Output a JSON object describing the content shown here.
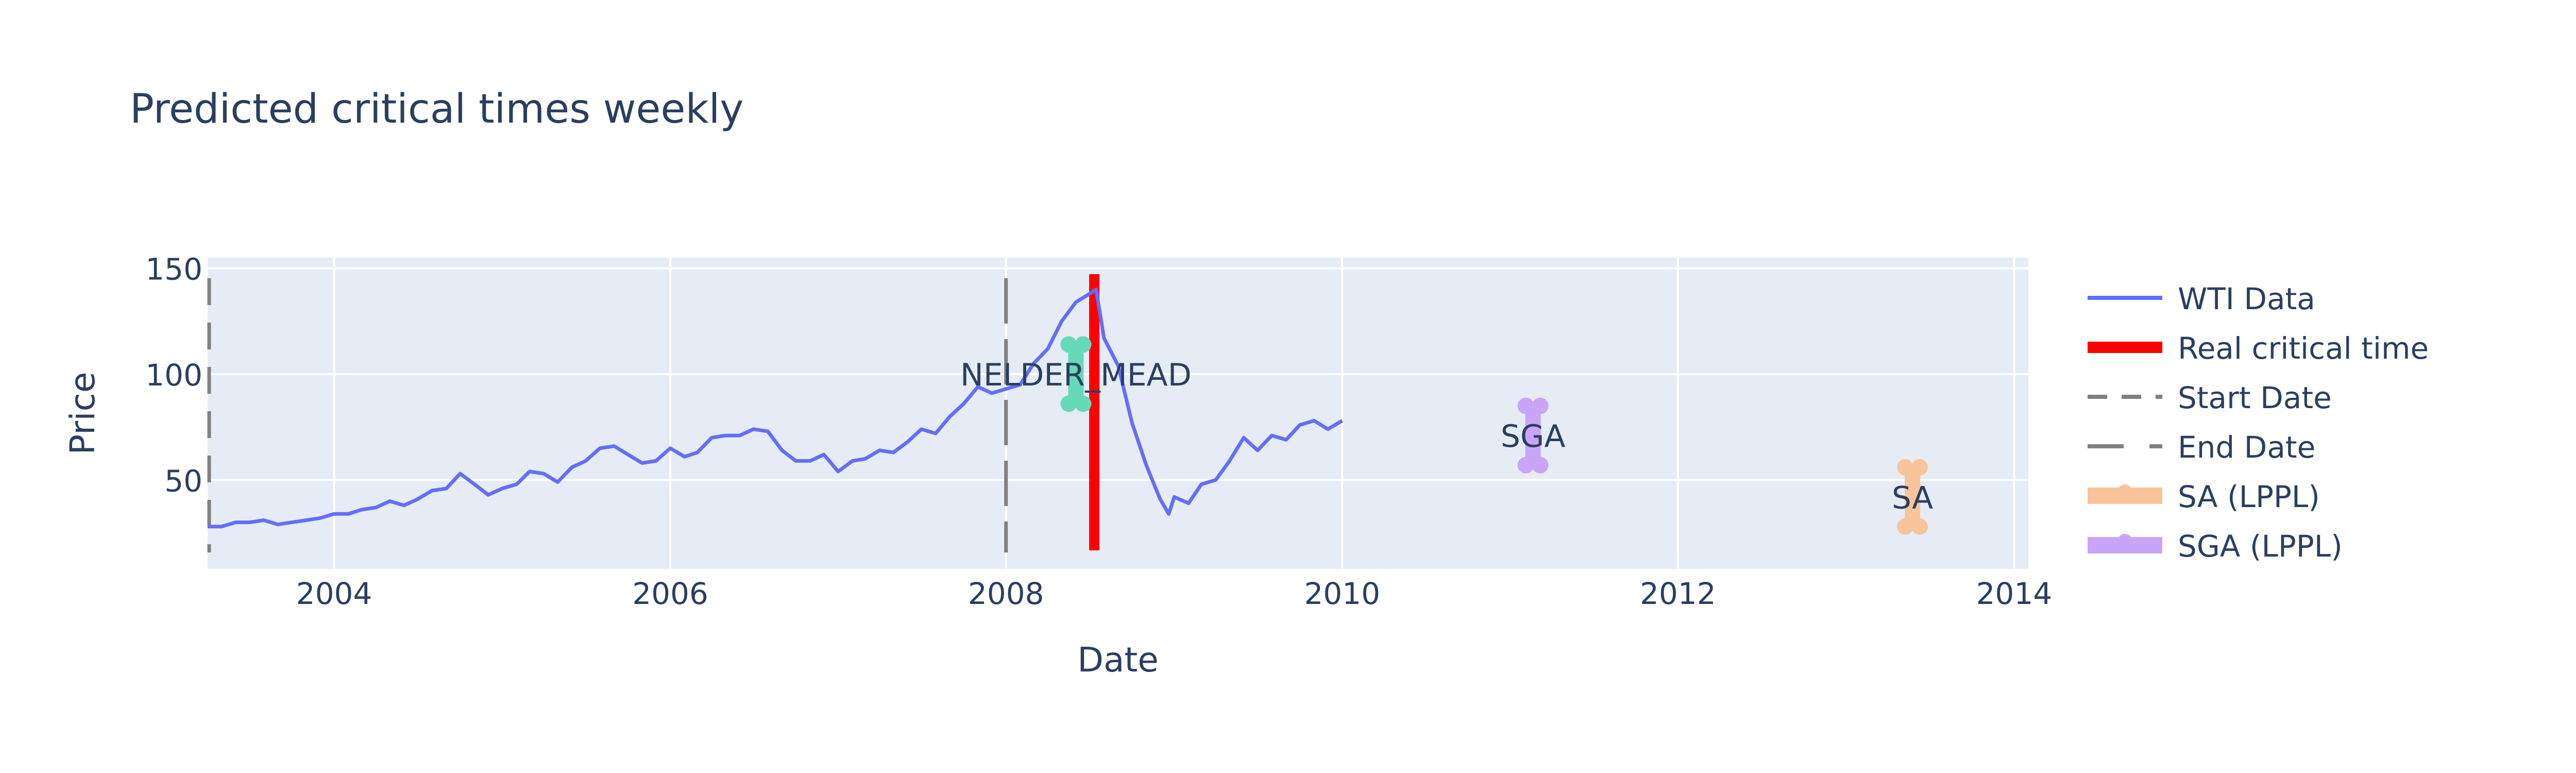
{
  "chart_data": {
    "type": "line",
    "title": "Predicted critical times weekly",
    "xlabel": "Date",
    "ylabel": "Price",
    "xlim": [
      "2003-04-01",
      "2014-02-01"
    ],
    "ylim": [
      8,
      155
    ],
    "x_ticks": [
      "2004",
      "2006",
      "2008",
      "2010",
      "2012",
      "2014"
    ],
    "y_ticks": [
      50,
      100,
      150
    ],
    "grid": true,
    "legend_position": "right",
    "colors": {
      "plot_bg": "#E5ECF6",
      "grid": "#ffffff",
      "text": "#2a3f5f",
      "wti": "#636EFA",
      "real": "#FF0000",
      "bounds": "#808080",
      "nelder_mead": "#66D9B8",
      "sa": "#F9C49A",
      "sga": "#C9A5F7"
    },
    "legend": [
      {
        "key": "wti",
        "label": "WTI Data",
        "style": "line"
      },
      {
        "key": "real",
        "label": "Real critical time",
        "style": "thick"
      },
      {
        "key": "start",
        "label": "Start Date",
        "style": "dash"
      },
      {
        "key": "end",
        "label": "End Date",
        "style": "longdash"
      },
      {
        "key": "sa",
        "label": "SA (LPPL)",
        "style": "band"
      },
      {
        "key": "sga",
        "label": "SGA (LPPL)",
        "style": "band"
      }
    ],
    "series": [
      {
        "key": "wti",
        "name": "WTI Data",
        "points": [
          [
            "2003-04-01",
            28
          ],
          [
            "2003-05-01",
            28
          ],
          [
            "2003-06-01",
            30
          ],
          [
            "2003-07-01",
            30
          ],
          [
            "2003-08-01",
            31
          ],
          [
            "2003-09-01",
            29
          ],
          [
            "2003-10-01",
            30
          ],
          [
            "2003-11-01",
            31
          ],
          [
            "2003-12-01",
            32
          ],
          [
            "2004-01-01",
            34
          ],
          [
            "2004-02-01",
            34
          ],
          [
            "2004-03-01",
            36
          ],
          [
            "2004-04-01",
            37
          ],
          [
            "2004-05-01",
            40
          ],
          [
            "2004-06-01",
            38
          ],
          [
            "2004-07-01",
            41
          ],
          [
            "2004-08-01",
            45
          ],
          [
            "2004-09-01",
            46
          ],
          [
            "2004-10-01",
            53
          ],
          [
            "2004-11-01",
            48
          ],
          [
            "2004-12-01",
            43
          ],
          [
            "2005-01-01",
            46
          ],
          [
            "2005-02-01",
            48
          ],
          [
            "2005-03-01",
            54
          ],
          [
            "2005-04-01",
            53
          ],
          [
            "2005-05-01",
            49
          ],
          [
            "2005-06-01",
            56
          ],
          [
            "2005-07-01",
            59
          ],
          [
            "2005-08-01",
            65
          ],
          [
            "2005-09-01",
            66
          ],
          [
            "2005-10-01",
            62
          ],
          [
            "2005-11-01",
            58
          ],
          [
            "2005-12-01",
            59
          ],
          [
            "2006-01-01",
            65
          ],
          [
            "2006-02-01",
            61
          ],
          [
            "2006-03-01",
            63
          ],
          [
            "2006-04-01",
            70
          ],
          [
            "2006-05-01",
            71
          ],
          [
            "2006-06-01",
            71
          ],
          [
            "2006-07-01",
            74
          ],
          [
            "2006-08-01",
            73
          ],
          [
            "2006-09-01",
            64
          ],
          [
            "2006-10-01",
            59
          ],
          [
            "2006-11-01",
            59
          ],
          [
            "2006-12-01",
            62
          ],
          [
            "2007-01-01",
            54
          ],
          [
            "2007-02-01",
            59
          ],
          [
            "2007-03-01",
            60
          ],
          [
            "2007-04-01",
            64
          ],
          [
            "2007-05-01",
            63
          ],
          [
            "2007-06-01",
            68
          ],
          [
            "2007-07-01",
            74
          ],
          [
            "2007-08-01",
            72
          ],
          [
            "2007-09-01",
            80
          ],
          [
            "2007-10-01",
            86
          ],
          [
            "2007-11-01",
            94
          ],
          [
            "2007-12-01",
            91
          ],
          [
            "2008-01-01",
            93
          ],
          [
            "2008-02-01",
            95
          ],
          [
            "2008-03-01",
            105
          ],
          [
            "2008-04-01",
            112
          ],
          [
            "2008-05-01",
            125
          ],
          [
            "2008-06-01",
            134
          ],
          [
            "2008-07-01",
            138
          ],
          [
            "2008-07-15",
            140
          ],
          [
            "2008-08-01",
            117
          ],
          [
            "2008-09-01",
            104
          ],
          [
            "2008-10-01",
            77
          ],
          [
            "2008-11-01",
            57
          ],
          [
            "2008-12-01",
            41
          ],
          [
            "2008-12-20",
            34
          ],
          [
            "2009-01-01",
            42
          ],
          [
            "2009-02-01",
            39
          ],
          [
            "2009-03-01",
            48
          ],
          [
            "2009-04-01",
            50
          ],
          [
            "2009-05-01",
            59
          ],
          [
            "2009-06-01",
            70
          ],
          [
            "2009-07-01",
            64
          ],
          [
            "2009-08-01",
            71
          ],
          [
            "2009-09-01",
            69
          ],
          [
            "2009-10-01",
            76
          ],
          [
            "2009-11-01",
            78
          ],
          [
            "2009-12-01",
            74
          ],
          [
            "2010-01-01",
            78
          ]
        ]
      }
    ],
    "vertical_lines": [
      {
        "key": "start",
        "name": "Start Date",
        "date": "2003-04-01"
      },
      {
        "key": "end",
        "name": "End Date",
        "date": "2008-01-01"
      },
      {
        "key": "real",
        "name": "Real critical time",
        "date": "2008-07-11"
      }
    ],
    "predictions": [
      {
        "key": "nelder_mead",
        "label": "NELDER_MEAD",
        "date": "2008-06-01",
        "y_low": 86,
        "y_high": 114
      },
      {
        "key": "sga",
        "label": "SGA",
        "date": "2011-02-20",
        "y_low": 57,
        "y_high": 85
      },
      {
        "key": "sa",
        "label": "SA",
        "date": "2013-05-25",
        "y_low": 28,
        "y_high": 56
      }
    ]
  }
}
